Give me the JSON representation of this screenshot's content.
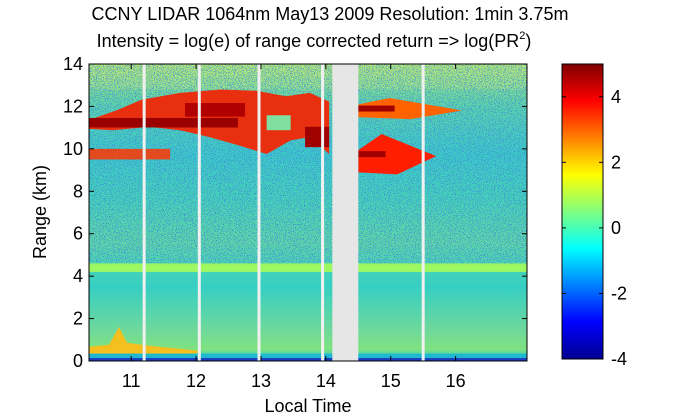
{
  "chart_data": {
    "type": "heatmap",
    "title": "CCNY LIDAR 1064nm May13 2009 Resolution: 1min 3.75m",
    "subtitle_prefix": "Intensity = log(e) of range corrected return => log(PR",
    "subtitle_sup": "2",
    "subtitle_suffix": ")",
    "xlabel": "Local Time",
    "ylabel": "Range (km)",
    "xlim": [
      10.35,
      17.1
    ],
    "ylim": [
      0,
      14
    ],
    "xticks": [
      11,
      12,
      13,
      14,
      15,
      16
    ],
    "yticks": [
      0,
      2,
      4,
      6,
      8,
      10,
      12,
      14
    ],
    "colorbar": {
      "range": [
        -4,
        5
      ],
      "ticks": [
        4,
        2,
        0,
        -2,
        -4
      ]
    },
    "no_data_intervals": [
      [
        14.1,
        14.5
      ]
    ],
    "data_gap_lines": [
      11.2,
      12.05,
      12.97,
      13.95,
      15.5
    ],
    "layers": [
      {
        "name": "boundary-layer-aerosol",
        "x": [
          10.35,
          12.0
        ],
        "y": [
          0.2,
          1.6
        ],
        "value": 2.3
      },
      {
        "name": "surface-band",
        "x": [
          10.35,
          17.1
        ],
        "y": [
          0.0,
          0.35
        ],
        "value": 0.6
      },
      {
        "name": "aerosol-layer-4.5km",
        "x": [
          10.35,
          17.1
        ],
        "y": [
          4.2,
          4.6
        ],
        "value": 0.9
      },
      {
        "name": "cirrus-main",
        "x": [
          10.35,
          14.05
        ],
        "y": [
          9.6,
          12.8
        ],
        "value": 4.5
      },
      {
        "name": "cirrus-thin-9.8km",
        "x": [
          10.35,
          11.6
        ],
        "y": [
          9.5,
          10.0
        ],
        "value": 3.4
      },
      {
        "name": "cirrus-afternoon-12km",
        "x": [
          14.5,
          16.1
        ],
        "y": [
          11.4,
          12.4
        ],
        "value": 3.0
      },
      {
        "name": "cirrus-afternoon-10km",
        "x": [
          14.5,
          15.7
        ],
        "y": [
          8.8,
          10.7
        ],
        "value": 3.6
      }
    ]
  }
}
